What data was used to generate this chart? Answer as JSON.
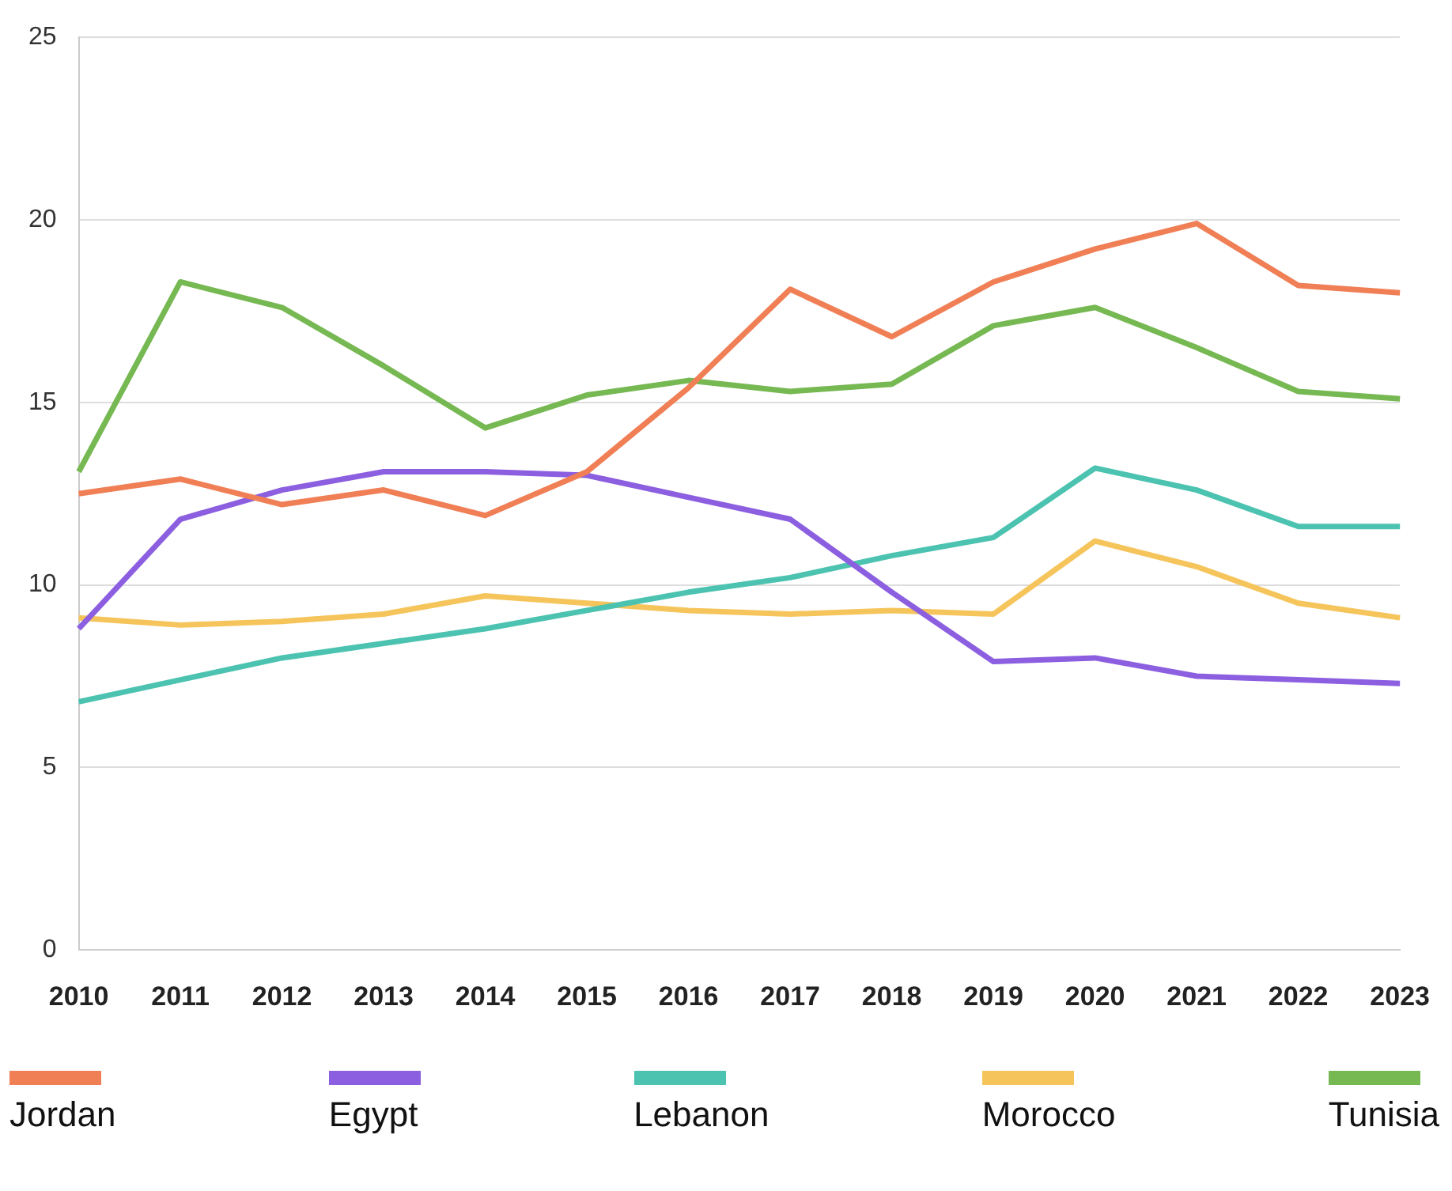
{
  "chart_data": {
    "type": "line",
    "categories": [
      "2010",
      "2011",
      "2012",
      "2013",
      "2014",
      "2015",
      "2016",
      "2017",
      "2018",
      "2019",
      "2020",
      "2021",
      "2022",
      "2023"
    ],
    "series": [
      {
        "name": "Jordan",
        "color": "#f07f56",
        "values": [
          12.5,
          12.9,
          12.2,
          12.6,
          11.9,
          13.1,
          15.4,
          18.1,
          16.8,
          18.3,
          19.2,
          19.9,
          18.2,
          18.0
        ]
      },
      {
        "name": "Egypt",
        "color": "#8c5fe0",
        "values": [
          8.8,
          11.8,
          12.6,
          13.1,
          13.1,
          13.0,
          12.4,
          11.8,
          9.8,
          7.9,
          8.0,
          7.5,
          7.4,
          7.3
        ]
      },
      {
        "name": "Lebanon",
        "color": "#4cc3b0",
        "values": [
          6.8,
          7.4,
          8.0,
          8.4,
          8.8,
          9.3,
          9.8,
          10.2,
          10.8,
          11.3,
          13.2,
          12.6,
          11.6,
          11.6
        ]
      },
      {
        "name": "Morocco",
        "color": "#f5c55c",
        "values": [
          9.1,
          8.9,
          9.0,
          9.2,
          9.7,
          9.5,
          9.3,
          9.2,
          9.3,
          9.2,
          11.2,
          10.5,
          9.5,
          9.1
        ]
      },
      {
        "name": "Tunisia",
        "color": "#76b852",
        "values": [
          13.1,
          18.3,
          17.6,
          16.0,
          14.3,
          15.2,
          15.6,
          15.3,
          15.5,
          17.1,
          17.6,
          16.5,
          15.3,
          15.1
        ]
      }
    ],
    "ylim": [
      0,
      25
    ],
    "yticks": [
      0,
      5,
      10,
      15,
      20,
      25
    ],
    "grid": "y",
    "legend": "bottom",
    "marker": "none",
    "line_style": "solid"
  }
}
